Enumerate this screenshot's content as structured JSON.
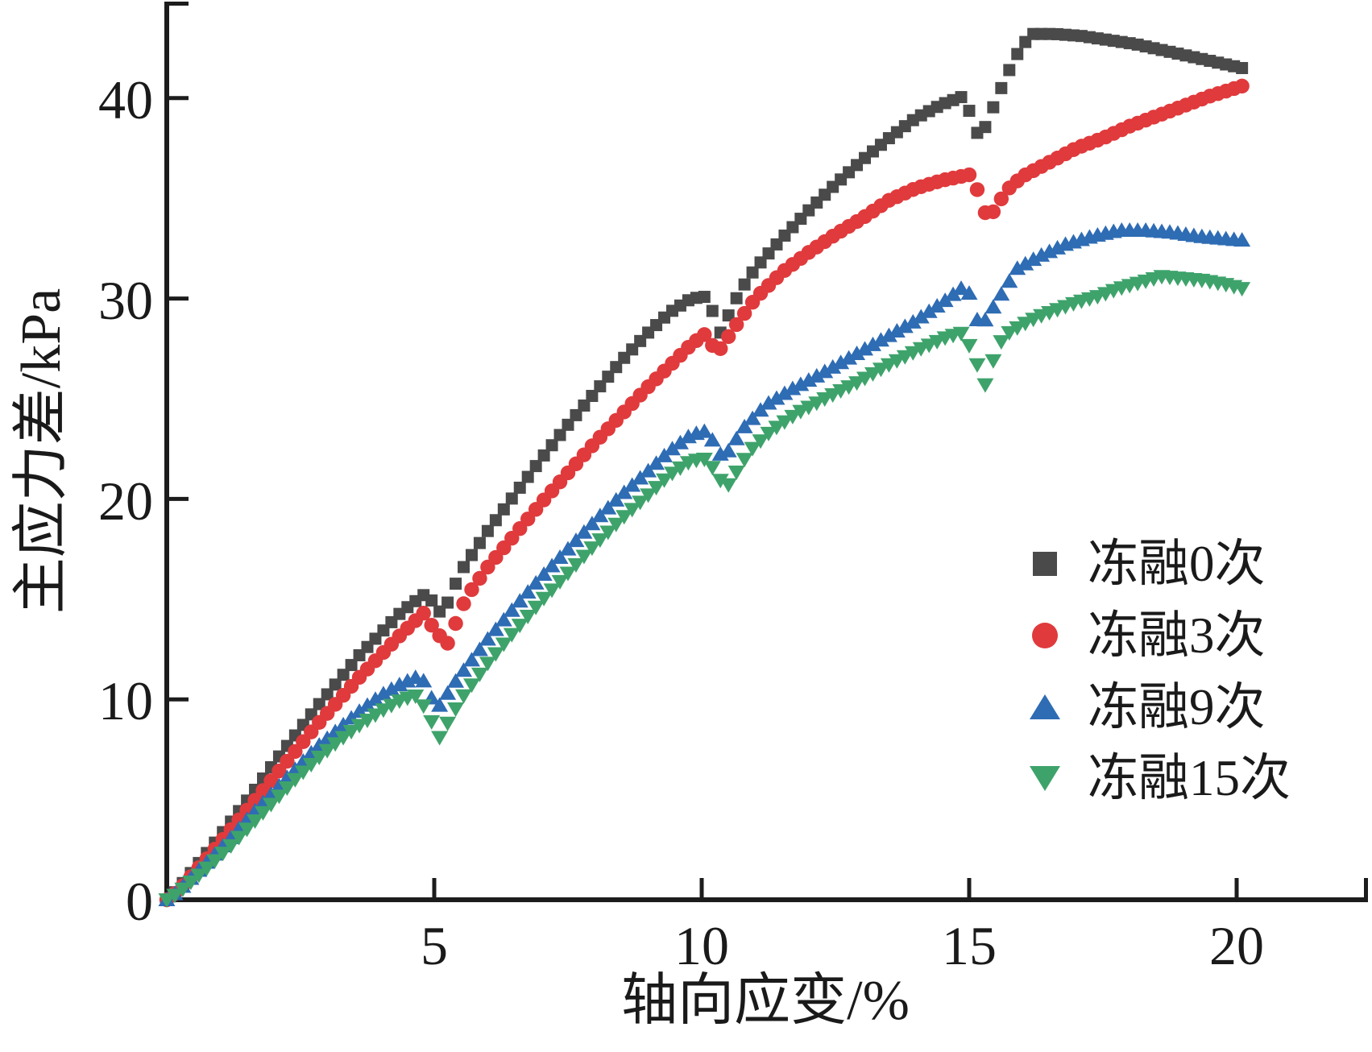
{
  "figure_background": "#ffffff",
  "chart_data": {
    "type": "scatter",
    "title": "",
    "xlabel": "轴向应变/%",
    "ylabel": "主应力差/kPa",
    "xlim": [
      0,
      22.5
    ],
    "ylim": [
      0,
      45
    ],
    "grid": false,
    "legend_position": "inside lower-right",
    "x_ticks": [
      5,
      10,
      15,
      20
    ],
    "y_ticks": [
      0,
      10,
      20,
      30,
      40
    ],
    "x_tick_labels": [
      "5",
      "10",
      "15",
      "20"
    ],
    "y_tick_labels": [
      "0",
      "10",
      "20",
      "30",
      "40"
    ],
    "axis_color": "#1c1c1c",
    "marker_step": 0.15,
    "series": [
      {
        "name": "冻融0次",
        "marker": "square",
        "color": "#4a4a4a",
        "points": [
          [
            0,
            0
          ],
          [
            0.2,
            0.5
          ],
          [
            0.5,
            1.5
          ],
          [
            0.8,
            2.5
          ],
          [
            1.2,
            3.9
          ],
          [
            1.6,
            5.3
          ],
          [
            2,
            6.8
          ],
          [
            2.4,
            8.2
          ],
          [
            2.8,
            9.6
          ],
          [
            3.2,
            10.9
          ],
          [
            3.6,
            12.2
          ],
          [
            4,
            13.3
          ],
          [
            4.4,
            14.4
          ],
          [
            4.85,
            15.3
          ],
          [
            5.15,
            14.2
          ],
          [
            5.5,
            16.4
          ],
          [
            6,
            18.4
          ],
          [
            6.5,
            20.2
          ],
          [
            7,
            22
          ],
          [
            7.5,
            23.7
          ],
          [
            8,
            25.3
          ],
          [
            8.5,
            26.9
          ],
          [
            9,
            28.3
          ],
          [
            9.4,
            29.3
          ],
          [
            9.8,
            30
          ],
          [
            10.1,
            30.1
          ],
          [
            10.35,
            28.3
          ],
          [
            10.7,
            30.3
          ],
          [
            11,
            31.5
          ],
          [
            11.5,
            33
          ],
          [
            12,
            34.4
          ],
          [
            12.5,
            35.7
          ],
          [
            13,
            36.9
          ],
          [
            13.5,
            38
          ],
          [
            14,
            39
          ],
          [
            14.5,
            39.7
          ],
          [
            14.9,
            40.1
          ],
          [
            15.2,
            37.9
          ],
          [
            15.55,
            40.2
          ],
          [
            15.85,
            42
          ],
          [
            16.15,
            43.2
          ],
          [
            16.6,
            43.2
          ],
          [
            17.1,
            43.1
          ],
          [
            17.6,
            42.9
          ],
          [
            18.1,
            42.7
          ],
          [
            18.6,
            42.4
          ],
          [
            19.1,
            42.1
          ],
          [
            19.6,
            41.8
          ],
          [
            20.1,
            41.5
          ]
        ]
      },
      {
        "name": "冻融3次",
        "marker": "circle",
        "color": "#e03a3c",
        "points": [
          [
            0,
            0
          ],
          [
            0.2,
            0.4
          ],
          [
            0.5,
            1.3
          ],
          [
            0.8,
            2.2
          ],
          [
            1.2,
            3.5
          ],
          [
            1.6,
            4.8
          ],
          [
            2,
            6.1
          ],
          [
            2.4,
            7.4
          ],
          [
            2.8,
            8.7
          ],
          [
            3.2,
            9.9
          ],
          [
            3.6,
            11.1
          ],
          [
            4,
            12.2
          ],
          [
            4.4,
            13.3
          ],
          [
            4.8,
            14.3
          ],
          [
            5.05,
            13.3
          ],
          [
            5.25,
            12.8
          ],
          [
            5.6,
            15.1
          ],
          [
            6,
            16.6
          ],
          [
            6.5,
            18.2
          ],
          [
            7,
            19.8
          ],
          [
            7.5,
            21.3
          ],
          [
            8,
            22.8
          ],
          [
            8.5,
            24.2
          ],
          [
            9,
            25.6
          ],
          [
            9.5,
            26.9
          ],
          [
            9.8,
            27.7
          ],
          [
            10.05,
            28.2
          ],
          [
            10.3,
            27.3
          ],
          [
            10.65,
            28.7
          ],
          [
            11,
            30
          ],
          [
            11.5,
            31.3
          ],
          [
            12,
            32.3
          ],
          [
            12.5,
            33.2
          ],
          [
            13,
            34
          ],
          [
            13.5,
            34.9
          ],
          [
            14,
            35.5
          ],
          [
            14.5,
            35.9
          ],
          [
            15.05,
            36.2
          ],
          [
            15.35,
            33.9
          ],
          [
            15.7,
            35.4
          ],
          [
            16,
            36.1
          ],
          [
            16.5,
            36.8
          ],
          [
            17,
            37.5
          ],
          [
            17.5,
            38
          ],
          [
            18,
            38.6
          ],
          [
            18.5,
            39.1
          ],
          [
            19,
            39.6
          ],
          [
            19.5,
            40.1
          ],
          [
            20.1,
            40.6
          ]
        ]
      },
      {
        "name": "冻融9次",
        "marker": "triangle-up",
        "color": "#2e6cb4",
        "points": [
          [
            0,
            0
          ],
          [
            0.2,
            0.4
          ],
          [
            0.5,
            1.2
          ],
          [
            0.8,
            2
          ],
          [
            1.2,
            3.1
          ],
          [
            1.6,
            4.3
          ],
          [
            2,
            5.4
          ],
          [
            2.4,
            6.5
          ],
          [
            2.8,
            7.6
          ],
          [
            3.2,
            8.5
          ],
          [
            3.6,
            9.4
          ],
          [
            4,
            10.2
          ],
          [
            4.4,
            10.8
          ],
          [
            4.75,
            11.2
          ],
          [
            5.05,
            9.5
          ],
          [
            5.45,
            11.1
          ],
          [
            6,
            13
          ],
          [
            6.5,
            14.6
          ],
          [
            7,
            16.1
          ],
          [
            7.5,
            17.5
          ],
          [
            8,
            18.9
          ],
          [
            8.5,
            20.2
          ],
          [
            9,
            21.4
          ],
          [
            9.4,
            22.4
          ],
          [
            9.8,
            23.2
          ],
          [
            10.1,
            23.4
          ],
          [
            10.4,
            22
          ],
          [
            10.8,
            23.6
          ],
          [
            11.2,
            24.7
          ],
          [
            11.7,
            25.5
          ],
          [
            12.2,
            26.2
          ],
          [
            12.8,
            27.1
          ],
          [
            13.4,
            28
          ],
          [
            14,
            28.9
          ],
          [
            14.5,
            29.8
          ],
          [
            14.95,
            30.7
          ],
          [
            15.2,
            28.5
          ],
          [
            15.55,
            30
          ],
          [
            15.9,
            31.5
          ],
          [
            16.3,
            32.1
          ],
          [
            16.8,
            32.7
          ],
          [
            17.3,
            33.1
          ],
          [
            17.8,
            33.4
          ],
          [
            18.3,
            33.4
          ],
          [
            18.8,
            33.3
          ],
          [
            19.3,
            33.1
          ],
          [
            19.7,
            33
          ],
          [
            20.15,
            32.9
          ]
        ]
      },
      {
        "name": "冻融15次",
        "marker": "triangle-down",
        "color": "#3ea36b",
        "points": [
          [
            0,
            0
          ],
          [
            0.2,
            0.3
          ],
          [
            0.5,
            1
          ],
          [
            0.8,
            1.7
          ],
          [
            1.2,
            2.7
          ],
          [
            1.6,
            3.8
          ],
          [
            2,
            4.9
          ],
          [
            2.4,
            6
          ],
          [
            2.8,
            7
          ],
          [
            3.2,
            7.9
          ],
          [
            3.6,
            8.7
          ],
          [
            4,
            9.4
          ],
          [
            4.4,
            10
          ],
          [
            4.7,
            10.2
          ],
          [
            5.1,
            8.1
          ],
          [
            5.5,
            10
          ],
          [
            6,
            11.8
          ],
          [
            6.5,
            13.4
          ],
          [
            7,
            14.9
          ],
          [
            7.5,
            16.3
          ],
          [
            8,
            17.7
          ],
          [
            8.5,
            19
          ],
          [
            9,
            20.2
          ],
          [
            9.4,
            21.2
          ],
          [
            9.8,
            21.9
          ],
          [
            10.1,
            22
          ],
          [
            10.45,
            20.5
          ],
          [
            10.9,
            22.4
          ],
          [
            11.3,
            23.4
          ],
          [
            11.8,
            24.3
          ],
          [
            12.3,
            25
          ],
          [
            12.9,
            25.8
          ],
          [
            13.5,
            26.7
          ],
          [
            14.1,
            27.5
          ],
          [
            14.6,
            28.1
          ],
          [
            14.9,
            28.3
          ],
          [
            15.15,
            26.7
          ],
          [
            15.3,
            25.7
          ],
          [
            15.55,
            27.7
          ],
          [
            15.75,
            28.3
          ],
          [
            16,
            28.7
          ],
          [
            16.3,
            29.1
          ],
          [
            16.6,
            29.4
          ],
          [
            17,
            29.8
          ],
          [
            17.4,
            30.1
          ],
          [
            17.8,
            30.5
          ],
          [
            18.2,
            30.8
          ],
          [
            18.6,
            31.1
          ],
          [
            19,
            31
          ],
          [
            19.4,
            30.9
          ],
          [
            19.8,
            30.7
          ],
          [
            20.1,
            30.5
          ]
        ]
      }
    ]
  }
}
